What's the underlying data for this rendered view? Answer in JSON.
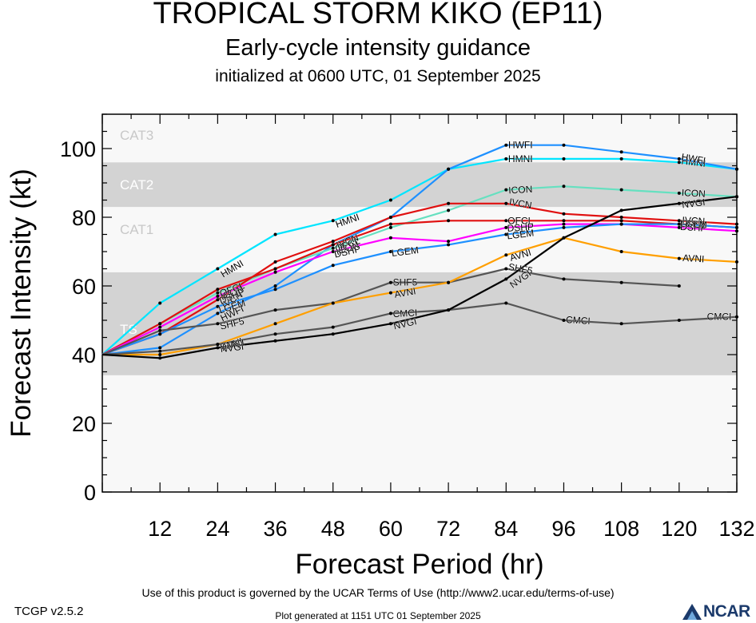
{
  "header": {
    "title": "TROPICAL STORM KIKO (EP11)",
    "subtitle": "Early-cycle intensity guidance",
    "init": "initialized at 0600 UTC, 01 September 2025"
  },
  "footer": {
    "terms": "Use of this product is governed by the UCAR Terms of Use (http://www2.ucar.edu/terms-of-use)",
    "version": "TCGP v2.5.2",
    "generated": "Plot generated at 1151 UTC   01 September 2025",
    "logo": "NCAR"
  },
  "chart_data": {
    "type": "line",
    "xlabel": "Forecast Period (hr)",
    "ylabel": "Forecast Intensity (kt)",
    "xlim": [
      0,
      132
    ],
    "ylim": [
      0,
      110
    ],
    "xticks": [
      12,
      24,
      36,
      48,
      60,
      72,
      84,
      96,
      108,
      120,
      132
    ],
    "yticks": [
      0,
      20,
      40,
      60,
      80,
      100
    ],
    "bands": [
      {
        "label": "TS",
        "from": 34,
        "to": 64,
        "color": "#d3d3d3"
      },
      {
        "label": "CAT1",
        "from": 64,
        "to": 83,
        "color": "#f8f8f8"
      },
      {
        "label": "CAT2",
        "from": 83,
        "to": 96,
        "color": "#d3d3d3"
      },
      {
        "label": "CAT3",
        "from": 96,
        "to": 110,
        "color": "#f8f8f8"
      }
    ],
    "series": [
      {
        "name": "HMNI",
        "color": "#00e5ff",
        "x": [
          0,
          12,
          24,
          36,
          48,
          60,
          72,
          84,
          96,
          108,
          120,
          132
        ],
        "y": [
          40,
          55,
          65,
          75,
          79,
          85,
          94,
          97,
          97,
          97,
          96,
          94
        ],
        "label_at": [
          24,
          48,
          84,
          120
        ]
      },
      {
        "name": "HWFI",
        "color": "#1e90ff",
        "x": [
          0,
          12,
          24,
          36,
          48,
          60,
          72,
          84,
          96,
          108,
          120,
          132
        ],
        "y": [
          40,
          42,
          52,
          60,
          72,
          80,
          94,
          101,
          101,
          99,
          97,
          94
        ],
        "label_at": [
          24,
          84,
          120
        ]
      },
      {
        "name": "ICON",
        "color": "#66e0c0",
        "x": [
          0,
          12,
          24,
          36,
          48,
          60,
          72,
          84,
          96,
          108,
          120,
          132
        ],
        "y": [
          40,
          49,
          58,
          65,
          71,
          77,
          82,
          88,
          89,
          88,
          87,
          86
        ],
        "label_at": [
          24,
          48,
          84,
          120
        ]
      },
      {
        "name": "IVCN",
        "color": "#e01010",
        "x": [
          0,
          12,
          24,
          36,
          48,
          60,
          72,
          84,
          96,
          108,
          120,
          132
        ],
        "y": [
          40,
          46,
          56,
          67,
          73,
          80,
          84,
          84,
          81,
          80,
          79,
          78
        ],
        "label_at": [
          24,
          48,
          84,
          120
        ]
      },
      {
        "name": "OFCL",
        "color": "#e01010",
        "x": [
          0,
          12,
          24,
          36,
          48,
          60,
          72,
          84,
          96,
          108,
          120,
          132
        ],
        "y": [
          40,
          49,
          59,
          65,
          72,
          78,
          79,
          79,
          79,
          79,
          78,
          77
        ],
        "label_at": [
          24,
          48,
          84,
          120
        ]
      },
      {
        "name": "DSHP",
        "color": "#ff00ff",
        "x": [
          0,
          12,
          24,
          36,
          48,
          60,
          72,
          84,
          96,
          108,
          120,
          132
        ],
        "y": [
          40,
          48,
          57,
          64,
          70,
          74,
          73,
          77,
          78,
          78,
          77,
          76
        ],
        "label_at": [
          24,
          48,
          84,
          120
        ]
      },
      {
        "name": "LGEM",
        "color": "#1e90ff",
        "x": [
          0,
          12,
          24,
          36,
          48,
          60,
          72,
          84,
          96,
          108,
          120,
          132
        ],
        "y": [
          40,
          46,
          54,
          59,
          66,
          70,
          72,
          75,
          77,
          78,
          78,
          77
        ],
        "label_at": [
          24,
          60,
          84,
          120
        ]
      },
      {
        "name": "SHF5",
        "color": "#555555",
        "x": [
          0,
          12,
          24,
          36,
          48,
          60,
          72,
          84,
          96,
          108,
          120
        ],
        "y": [
          40,
          47,
          49,
          53,
          55,
          61,
          61,
          65,
          62,
          61,
          60
        ],
        "label_at": [
          24,
          60,
          84
        ]
      },
      {
        "name": "AVNI",
        "color": "#ff9f00",
        "x": [
          0,
          12,
          24,
          36,
          48,
          60,
          72,
          84,
          96,
          108,
          120,
          132
        ],
        "y": [
          40,
          40,
          43,
          49,
          55,
          58,
          61,
          69,
          74,
          70,
          68,
          67
        ],
        "label_at": [
          24,
          60,
          84,
          120
        ]
      },
      {
        "name": "CMCI",
        "color": "#555555",
        "x": [
          0,
          12,
          24,
          36,
          48,
          60,
          72,
          84,
          96,
          108,
          120,
          132
        ],
        "y": [
          40,
          41,
          43,
          46,
          48,
          52,
          53,
          55,
          50,
          49,
          50,
          51
        ],
        "label_at": [
          24,
          60,
          96,
          132
        ]
      },
      {
        "name": "NVGI",
        "color": "#000000",
        "x": [
          0,
          12,
          24,
          36,
          48,
          60,
          72,
          84,
          96,
          108,
          120,
          132
        ],
        "y": [
          40,
          39,
          42,
          44,
          46,
          49,
          53,
          62,
          74,
          82,
          84,
          86
        ],
        "label_at": [
          24,
          60,
          84,
          120
        ]
      }
    ]
  }
}
